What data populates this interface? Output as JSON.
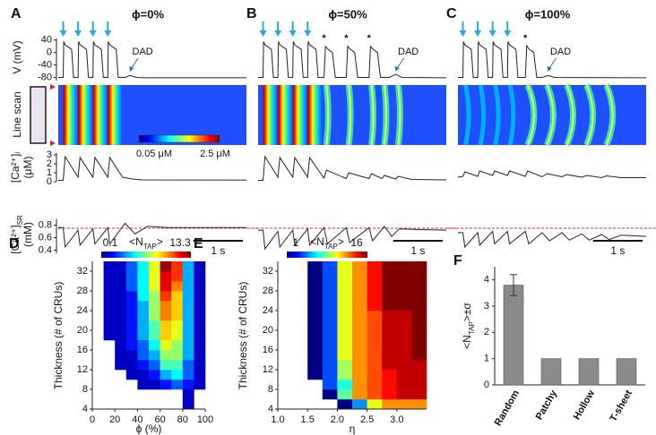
{
  "chart_data": [
    {
      "type": "traces",
      "label": "A",
      "title": "ϕ=0%",
      "stimuli": [
        0.1,
        0.4,
        0.7,
        1.0
      ],
      "asterisks": [],
      "asterisk_text": "*",
      "annotation": {
        "text": "DAD",
        "t": 1.45
      },
      "linescan_label": "Line scan",
      "colorbar_labels": [
        "0.05 μM",
        "2.5 μM"
      ],
      "v_label": "V (mV)",
      "v_ylim": [
        -90,
        45
      ],
      "v_yticks": [
        40,
        0,
        -40,
        -80
      ],
      "ca_label": {
        "main": "[Ca²⁺]ᵢ",
        "unit": "(μM)"
      },
      "ca_ylim": [
        0,
        3.2
      ],
      "ca_yticks": [
        3,
        2,
        1,
        0
      ],
      "sr_label": {
        "main": "[Ca²⁺]",
        "sub": "SR",
        "unit": "(mM)"
      },
      "sr_ylim": [
        0.35,
        0.9
      ],
      "sr_yticks": [
        {
          "value": 0.8,
          "label": "0.8"
        },
        {
          "value": 0.6,
          "label": "0.6"
        },
        {
          "value": 0.4,
          "label": "0.4"
        }
      ],
      "sr_threshold": 0.75,
      "xlim": [
        0,
        3.8
      ],
      "scale_bar": {
        "length": 1,
        "label": "1 s"
      },
      "v": {
        "x": [
          0,
          0.1,
          0.11,
          0.14,
          0.27,
          0.31,
          0.4,
          0.41,
          0.44,
          0.57,
          0.61,
          0.7,
          0.71,
          0.74,
          0.87,
          0.91,
          1.0,
          1.01,
          1.04,
          1.17,
          1.21,
          1.35,
          1.45,
          1.58,
          1.75,
          3.8
        ],
        "values": [
          -80,
          -80,
          35,
          25,
          10,
          -80,
          -80,
          35,
          25,
          10,
          -80,
          -80,
          35,
          25,
          10,
          -80,
          -80,
          35,
          25,
          10,
          -80,
          -80,
          -74,
          -80,
          -81,
          -81
        ]
      },
      "ca": {
        "x": [
          0,
          0.1,
          0.14,
          0.4,
          0.44,
          0.7,
          0.74,
          1.0,
          1.04,
          1.3,
          1.5,
          1.7,
          3.8
        ],
        "values": [
          0.15,
          0.15,
          2.8,
          0.5,
          2.7,
          0.5,
          2.7,
          0.5,
          2.7,
          0.5,
          0.3,
          0.2,
          0.18
        ]
      },
      "sr": {
        "x": [
          0,
          0.1,
          0.14,
          0.4,
          0.44,
          0.7,
          0.74,
          1.0,
          1.04,
          1.35,
          1.55,
          1.8,
          2.2,
          3.8
        ],
        "values": [
          0.76,
          0.76,
          0.45,
          0.72,
          0.48,
          0.74,
          0.5,
          0.76,
          0.5,
          0.83,
          0.66,
          0.78,
          0.76,
          0.76
        ]
      }
    },
    {
      "type": "traces",
      "label": "B",
      "title": "ϕ=50%",
      "stimuli": [
        0.1,
        0.4,
        0.7,
        1.0
      ],
      "asterisks": [
        1.33,
        1.78,
        2.24
      ],
      "asterisk_text": "*",
      "annotation": {
        "text": "DAD",
        "t": 2.78
      },
      "scale_bar": {
        "length": 1,
        "label": "1 s"
      },
      "v": {
        "x": [
          0,
          0.1,
          0.11,
          0.14,
          0.27,
          0.31,
          0.4,
          0.41,
          0.44,
          0.57,
          0.61,
          0.7,
          0.71,
          0.74,
          0.87,
          0.91,
          1.0,
          1.01,
          1.04,
          1.17,
          1.21,
          1.33,
          1.36,
          1.4,
          1.5,
          1.56,
          1.78,
          1.81,
          1.85,
          1.95,
          2.01,
          2.24,
          2.27,
          2.31,
          2.41,
          2.47,
          2.65,
          2.78,
          2.9,
          3.8
        ],
        "values": [
          -80,
          -80,
          35,
          25,
          10,
          -80,
          -80,
          35,
          25,
          10,
          -80,
          -80,
          35,
          25,
          10,
          -80,
          -80,
          35,
          25,
          10,
          -80,
          -80,
          20,
          12,
          0,
          -80,
          -80,
          20,
          12,
          0,
          -80,
          -80,
          20,
          12,
          0,
          -80,
          -80,
          -70,
          -80,
          -81
        ]
      },
      "ca": {
        "x": [
          0,
          0.1,
          0.14,
          0.4,
          0.44,
          0.7,
          0.74,
          1.0,
          1.04,
          1.33,
          1.38,
          1.78,
          1.83,
          2.24,
          2.29,
          2.5,
          2.55,
          2.78,
          2.83,
          3.1,
          3.8
        ],
        "values": [
          0.15,
          0.15,
          2.8,
          0.5,
          2.7,
          0.5,
          2.7,
          0.5,
          2.7,
          0.4,
          1.3,
          0.35,
          1.0,
          0.35,
          0.9,
          0.35,
          0.7,
          0.3,
          0.6,
          0.25,
          0.2
        ]
      },
      "sr": {
        "x": [
          0,
          0.1,
          0.14,
          0.4,
          0.44,
          0.7,
          0.74,
          1.0,
          1.04,
          1.33,
          1.4,
          1.78,
          1.85,
          2.24,
          2.31,
          2.55,
          2.7,
          2.85,
          3.2,
          3.8
        ],
        "values": [
          0.72,
          0.72,
          0.42,
          0.7,
          0.45,
          0.72,
          0.48,
          0.74,
          0.48,
          0.76,
          0.5,
          0.76,
          0.52,
          0.76,
          0.55,
          0.78,
          0.62,
          0.74,
          0.73,
          0.72
        ]
      }
    },
    {
      "type": "traces",
      "label": "C",
      "title": "ϕ=100%",
      "stimuli": [
        0.1,
        0.4,
        0.7,
        1.0
      ],
      "asterisks": [
        1.36
      ],
      "asterisk_text": "*",
      "annotation": {
        "text": "DAD",
        "t": 1.82
      },
      "scale_bar": {
        "length": 1,
        "label": "1 s"
      },
      "v": {
        "x": [
          0,
          0.1,
          0.11,
          0.14,
          0.27,
          0.31,
          0.4,
          0.41,
          0.44,
          0.57,
          0.61,
          0.7,
          0.71,
          0.74,
          0.87,
          0.91,
          1.0,
          1.01,
          1.04,
          1.17,
          1.21,
          1.36,
          1.39,
          1.43,
          1.53,
          1.59,
          1.7,
          1.82,
          1.95,
          3.8
        ],
        "values": [
          -80,
          -80,
          35,
          25,
          10,
          -80,
          -80,
          35,
          25,
          10,
          -80,
          -80,
          35,
          25,
          10,
          -80,
          -80,
          35,
          25,
          10,
          -80,
          -80,
          22,
          12,
          0,
          -80,
          -80,
          -74,
          -80,
          -81
        ]
      },
      "ca": {
        "x": [
          0,
          0.1,
          0.14,
          0.4,
          0.44,
          0.7,
          0.74,
          1.0,
          1.04,
          1.36,
          1.41,
          1.7,
          1.8,
          2.1,
          2.2,
          2.5,
          2.6,
          2.9,
          3.0,
          3.3,
          3.8
        ],
        "values": [
          0.5,
          0.6,
          1.1,
          0.6,
          1.2,
          0.7,
          1.2,
          0.7,
          1.2,
          0.6,
          1.2,
          0.55,
          0.9,
          0.55,
          0.8,
          0.5,
          0.7,
          0.45,
          0.65,
          0.45,
          0.45
        ]
      },
      "sr": {
        "x": [
          0,
          0.1,
          0.14,
          0.4,
          0.44,
          0.7,
          0.74,
          1.0,
          1.04,
          1.36,
          1.43,
          1.7,
          1.85,
          2.1,
          2.25,
          2.5,
          2.65,
          2.9,
          3.05,
          3.3,
          3.8
        ],
        "values": [
          0.68,
          0.68,
          0.45,
          0.68,
          0.48,
          0.7,
          0.5,
          0.7,
          0.5,
          0.7,
          0.5,
          0.68,
          0.55,
          0.68,
          0.56,
          0.66,
          0.56,
          0.65,
          0.57,
          0.64,
          0.62
        ]
      }
    },
    {
      "type": "heatmap",
      "label": "D",
      "colorbar_title": {
        "main": "<N",
        "sub": "TAP",
        "end": ">"
      },
      "clim": [
        0.1,
        13.3
      ],
      "xlabel": "ϕ (%)",
      "ylabel": "Thickness (# of CRUs)",
      "xlim": [
        0,
        100
      ],
      "xticks": [
        0,
        20,
        40,
        60,
        80,
        100
      ],
      "ylim": [
        4,
        34
      ],
      "yticks": [
        4,
        8,
        12,
        16,
        20,
        24,
        28,
        32
      ],
      "xbins": [
        10,
        20,
        30,
        40,
        50,
        60,
        70,
        80,
        90,
        100
      ],
      "ybins": [
        4,
        6,
        8,
        10,
        12,
        14,
        16,
        18,
        20,
        22,
        24,
        26,
        28,
        30,
        32,
        34
      ],
      "values": [
        [
          null,
          null,
          null,
          null,
          null,
          null,
          null,
          1,
          null
        ],
        [
          null,
          null,
          null,
          null,
          null,
          null,
          null,
          1,
          null
        ],
        [
          null,
          null,
          null,
          1,
          1,
          2,
          3,
          2,
          1
        ],
        [
          null,
          null,
          1,
          1,
          2,
          4,
          5,
          3,
          1
        ],
        [
          null,
          1,
          1,
          2,
          3,
          6,
          6,
          3,
          1
        ],
        [
          null,
          1,
          1,
          3,
          4,
          7,
          7,
          4,
          1
        ],
        [
          null,
          1,
          2,
          3,
          5,
          8,
          7,
          4,
          1
        ],
        [
          1,
          1,
          2,
          4,
          6,
          9,
          8,
          4,
          1
        ],
        [
          1,
          1,
          2,
          4,
          6,
          9,
          8,
          4,
          1
        ],
        [
          1,
          1,
          2,
          4,
          7,
          10,
          9,
          4,
          1
        ],
        [
          1,
          1,
          2,
          4,
          7,
          10,
          9,
          4,
          1
        ],
        [
          1,
          1,
          2,
          5,
          7,
          11,
          9,
          4,
          1
        ],
        [
          1,
          1,
          3,
          5,
          8,
          12,
          10,
          4,
          1
        ],
        [
          1,
          1,
          3,
          5,
          8,
          12,
          11,
          4,
          1
        ],
        [
          1,
          1,
          3,
          5,
          8,
          13,
          11,
          4,
          1
        ]
      ]
    },
    {
      "type": "heatmap",
      "label": "E",
      "colorbar_title": {
        "main": "<N",
        "sub": "TAP",
        "end": ">"
      },
      "clim": [
        1,
        16
      ],
      "xlabel": "η",
      "ylabel": "Thickness (# of CRUs)",
      "xlim": [
        1.0,
        3.5
      ],
      "xticks": [
        {
          "value": 1.0,
          "label": "1.0"
        },
        1.5,
        {
          "value": 2.0,
          "label": "2.0"
        },
        2.5,
        {
          "value": 3.0,
          "label": "3.0"
        }
      ],
      "ylim": [
        4,
        34
      ],
      "yticks": [
        4,
        8,
        12,
        16,
        20,
        24,
        28,
        32
      ],
      "xbins": [
        1.5,
        1.75,
        2.0,
        2.25,
        2.5,
        2.75,
        3.0,
        3.25,
        3.5
      ],
      "ybins": [
        4,
        6,
        8,
        10,
        12,
        14,
        16,
        18,
        20,
        22,
        24,
        26,
        28,
        30,
        32,
        34
      ],
      "values": [
        [
          null,
          null,
          1,
          5,
          10,
          12,
          12,
          12
        ],
        [
          null,
          1,
          8,
          12,
          13,
          14,
          15,
          15
        ],
        [
          null,
          4,
          7,
          12,
          13,
          14,
          15,
          15
        ],
        [
          1,
          4,
          9,
          12,
          13,
          14,
          15,
          15
        ],
        [
          1,
          4,
          9,
          12,
          13,
          15,
          15,
          15
        ],
        [
          1,
          4,
          10,
          12,
          13,
          15,
          15,
          16
        ],
        [
          1,
          4,
          10,
          12,
          13,
          15,
          15,
          16
        ],
        [
          1,
          4,
          10,
          12,
          13,
          15,
          15,
          16
        ],
        [
          1,
          4,
          10,
          12,
          13,
          15,
          15,
          16
        ],
        [
          1,
          4,
          10,
          12,
          13,
          15,
          15,
          16
        ],
        [
          1,
          4,
          10,
          12,
          14,
          16,
          16,
          16
        ],
        [
          1,
          4,
          10,
          12,
          14,
          16,
          16,
          16
        ],
        [
          1,
          4,
          10,
          12,
          14,
          16,
          16,
          16
        ],
        [
          1,
          4,
          10,
          12,
          14,
          16,
          16,
          16
        ],
        [
          1,
          4,
          10,
          12,
          14,
          16,
          16,
          16
        ]
      ]
    },
    {
      "type": "bar",
      "label": "F",
      "ylabel": {
        "main": "<N",
        "sub": "TAP",
        "end": ">±σ"
      },
      "categories": [
        "Random",
        "Patchy",
        "Hollow",
        "T-sheet"
      ],
      "values": [
        3.8,
        1,
        1,
        1
      ],
      "errors": [
        0.4,
        0,
        0,
        0
      ],
      "color": "#8a8a8a",
      "ylim": [
        0,
        4.5
      ],
      "yticks": [
        0,
        1,
        2,
        3,
        4
      ]
    }
  ]
}
